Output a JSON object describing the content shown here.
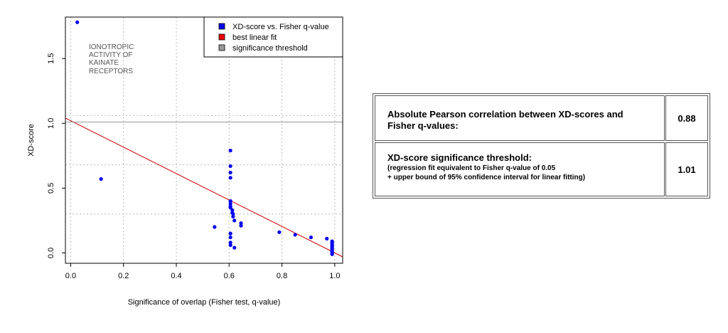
{
  "chart_data": {
    "type": "scatter",
    "xlabel": "Significance of overlap (Fisher test, q-value)",
    "ylabel": "XD-score",
    "xlim": [
      -0.02,
      1.03
    ],
    "ylim": [
      -0.08,
      1.82
    ],
    "xticks": [
      "0.0",
      "0.2",
      "0.4",
      "0.6",
      "0.8",
      "1.0"
    ],
    "xtick_values": [
      0,
      0.2,
      0.4,
      0.6,
      0.8,
      1.0
    ],
    "yticks": [
      "0.0",
      "0.5",
      "1.0",
      "1.5"
    ],
    "ytick_values": [
      0,
      0.5,
      1.0,
      1.5
    ],
    "grid": true,
    "annotation": [
      "IONOTROPIC",
      "ACTIVITY OF",
      "KAINATE",
      "RECEPTORS"
    ],
    "legend_position": "top-right",
    "legend": [
      {
        "label": "XD-score vs. Fisher q-value",
        "color": "#0000ee"
      },
      {
        "label": "best linear fit",
        "color": "#ee0000"
      },
      {
        "label": "significance threshold",
        "color": "#999999"
      }
    ],
    "series": [
      {
        "name": "XD-score vs. Fisher q-value",
        "color": "#0000ee",
        "points": [
          [
            0.025,
            1.78
          ],
          [
            0.115,
            0.57
          ],
          [
            0.545,
            0.2
          ],
          [
            0.605,
            0.79
          ],
          [
            0.605,
            0.67
          ],
          [
            0.605,
            0.62
          ],
          [
            0.605,
            0.58
          ],
          [
            0.605,
            0.4
          ],
          [
            0.605,
            0.38
          ],
          [
            0.605,
            0.36
          ],
          [
            0.605,
            0.35
          ],
          [
            0.605,
            0.15
          ],
          [
            0.605,
            0.12
          ],
          [
            0.605,
            0.08
          ],
          [
            0.605,
            0.06
          ],
          [
            0.612,
            0.33
          ],
          [
            0.612,
            0.31
          ],
          [
            0.615,
            0.3
          ],
          [
            0.615,
            0.28
          ],
          [
            0.62,
            0.25
          ],
          [
            0.62,
            0.04
          ],
          [
            0.645,
            0.23
          ],
          [
            0.645,
            0.21
          ],
          [
            0.79,
            0.16
          ],
          [
            0.85,
            0.14
          ],
          [
            0.91,
            0.12
          ],
          [
            0.97,
            0.11
          ],
          [
            0.99,
            0.09
          ],
          [
            0.99,
            0.08
          ],
          [
            0.99,
            0.07
          ],
          [
            0.99,
            0.06
          ],
          [
            0.99,
            0.05
          ],
          [
            0.99,
            0.04
          ],
          [
            0.99,
            0.03
          ],
          [
            0.99,
            0.02
          ],
          [
            0.99,
            0.01
          ],
          [
            0.99,
            0.0
          ],
          [
            0.99,
            -0.01
          ]
        ]
      },
      {
        "name": "best linear fit",
        "color": "#cc0000",
        "line": {
          "intercept": 1.02,
          "slope": -1.02
        }
      },
      {
        "name": "significance threshold",
        "color": "#999999",
        "hline": 1.01
      }
    ],
    "extra_gridlines": [
      1.06,
      0.68,
      0.3
    ]
  },
  "table": {
    "row1": {
      "label_line1": "Absolute Pearson correlation between XD-scores and",
      "label_line2": "Fisher q-values:",
      "value": "0.88"
    },
    "row2": {
      "label_main": "XD-score significance threshold:",
      "label_sub1": "(regression fit equivalent to Fisher q-value of 0.05",
      "label_sub2": "+ upper bound of 95% confidence interval for linear fitting)",
      "value": "1.01"
    }
  }
}
